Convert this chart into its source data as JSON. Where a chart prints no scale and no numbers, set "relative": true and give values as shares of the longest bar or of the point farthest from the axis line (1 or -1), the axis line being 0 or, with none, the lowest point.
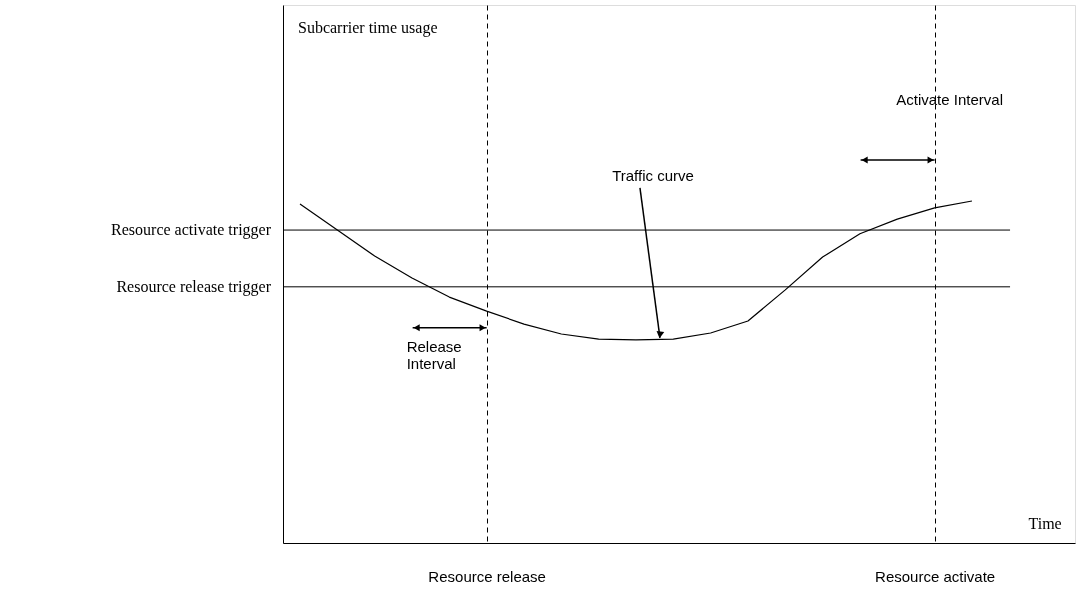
{
  "chart_data": {
    "type": "line",
    "relative": true,
    "xlabel": "Time",
    "categories": [
      null,
      null,
      null,
      null,
      null,
      "Resource release",
      null,
      null,
      null,
      null,
      null,
      null,
      null,
      null,
      null,
      null,
      null,
      "Resource activate",
      null
    ],
    "series": [
      {
        "color": "#000000",
        "values": [
          0.991,
          0.915,
          0.839,
          0.775,
          0.719,
          0.678,
          0.64,
          0.611,
          0.596,
          0.594,
          0.596,
          0.614,
          0.649,
          0.74,
          0.836,
          0.904,
          0.947,
          0.98,
          1
        ]
      }
    ],
    "ref_lines": [
      {
        "axis": "y",
        "value": 0.915,
        "label": "Resource activate trigger",
        "color": "#000000"
      },
      {
        "axis": "y",
        "value": 0.749,
        "label": "Resource release trigger",
        "color": "#000000"
      }
    ],
    "annotations": [
      "Traffic curve",
      "Release Interval",
      "Activate Interval",
      "Subcarrier time usage"
    ],
    "grid": "x",
    "tick_labels": "x",
    "marker": "none",
    "line_style": "solid"
  }
}
